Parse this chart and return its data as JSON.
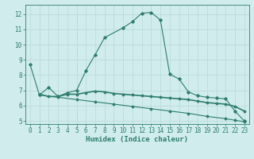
{
  "line1_x": [
    0,
    1,
    2,
    3,
    4,
    5,
    6,
    7,
    8,
    10,
    11,
    12,
    13,
    14,
    15,
    16,
    17,
    18,
    19,
    20,
    21,
    22,
    23
  ],
  "line1_y": [
    8.7,
    6.7,
    7.2,
    6.6,
    6.85,
    7.0,
    8.3,
    9.35,
    10.45,
    11.1,
    11.5,
    12.05,
    12.1,
    11.6,
    8.05,
    7.75,
    6.9,
    6.65,
    6.55,
    6.5,
    6.45,
    5.65,
    5.0
  ],
  "line2_x": [
    1,
    2,
    3,
    4,
    5,
    6,
    7,
    8,
    9,
    10,
    11,
    12,
    13,
    14,
    15,
    16,
    17,
    18,
    19,
    20,
    21,
    22,
    23
  ],
  "line2_y": [
    6.75,
    6.6,
    6.6,
    6.75,
    6.75,
    6.85,
    6.95,
    6.9,
    6.8,
    6.75,
    6.7,
    6.65,
    6.6,
    6.55,
    6.5,
    6.45,
    6.4,
    6.3,
    6.2,
    6.15,
    6.1,
    5.95,
    5.65
  ],
  "line3_x": [
    1,
    3,
    5,
    7,
    9,
    11,
    13,
    15,
    17,
    19,
    21,
    22,
    23
  ],
  "line3_y": [
    6.7,
    6.55,
    6.4,
    6.25,
    6.1,
    5.95,
    5.8,
    5.65,
    5.5,
    5.3,
    5.15,
    5.05,
    4.95
  ],
  "line_color": "#2e7d6e",
  "bg_color": "#d0ecec",
  "grid_color": "#b8d8d8",
  "xlabel": "Humidex (Indice chaleur)",
  "xlim": [
    -0.5,
    23.5
  ],
  "ylim": [
    4.8,
    12.6
  ],
  "yticks": [
    5,
    6,
    7,
    8,
    9,
    10,
    11,
    12
  ],
  "xticks": [
    0,
    1,
    2,
    3,
    4,
    5,
    6,
    7,
    8,
    9,
    10,
    11,
    12,
    13,
    14,
    15,
    16,
    17,
    18,
    19,
    20,
    21,
    22,
    23
  ],
  "xlabel_fontsize": 6.5,
  "tick_fontsize": 5.5
}
